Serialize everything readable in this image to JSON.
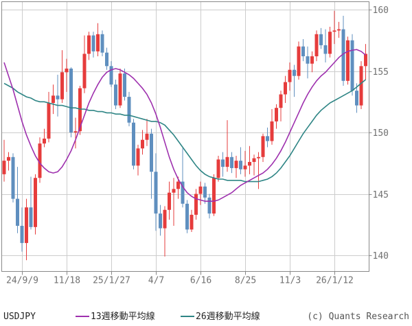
{
  "footer": {
    "symbol_label": "USDJPY",
    "copyright": "(c) Quants Research"
  },
  "chart_data": {
    "type": "candlestick",
    "symbol": "USDJPY",
    "title": "USDJPY weekly candlestick chart with 13-week and 26-week moving averages",
    "timeframe": "weekly",
    "y_axis": {
      "ticks": [
        140,
        145,
        150,
        155,
        160
      ],
      "side": "right",
      "min": 138.7,
      "max": 160.7
    },
    "x_axis": {
      "tick_labels": [
        "24/9/9",
        "11/18",
        "25/1/27",
        "4/7",
        "6/16",
        "8/25",
        "11/3",
        "26/1/12"
      ],
      "tick_weeks": [
        4,
        14,
        24,
        34,
        44,
        54,
        64,
        74
      ]
    },
    "grid": true,
    "legend_position": "bottom",
    "legend": [
      {
        "label": "13週移動平均線",
        "color": "#9e30ae"
      },
      {
        "label": "26週移動平均線",
        "color": "#2e8585"
      }
    ],
    "colors": {
      "up": "#e63c3c",
      "down": "#5f8fbf",
      "ma13": "#9e30ae",
      "ma26": "#2e8585",
      "grid": "#cccccc",
      "axis": "#888888",
      "label": "#707070"
    },
    "candles_format": "open,high,low,close (one per week)",
    "candles": [
      [
        146.6,
        149.4,
        146.0,
        147.7
      ],
      [
        147.7,
        148.4,
        146.9,
        148.0
      ],
      [
        148.0,
        148.3,
        144.3,
        144.6
      ],
      [
        144.6,
        147.2,
        141.8,
        142.4
      ],
      [
        142.4,
        143.9,
        140.3,
        141.0
      ],
      [
        141.0,
        144.6,
        139.6,
        143.9
      ],
      [
        143.9,
        146.4,
        142.1,
        142.3
      ],
      [
        142.3,
        146.6,
        141.7,
        146.3
      ],
      [
        146.3,
        149.6,
        145.9,
        149.1
      ],
      [
        149.1,
        150.3,
        148.8,
        149.5
      ],
      [
        149.5,
        153.3,
        149.2,
        152.4
      ],
      [
        152.4,
        153.9,
        151.5,
        153.0
      ],
      [
        153.0,
        154.7,
        151.3,
        152.7
      ],
      [
        152.7,
        156.7,
        152.4,
        154.9
      ],
      [
        154.9,
        156.0,
        153.3,
        155.2
      ],
      [
        155.2,
        155.3,
        149.6,
        150.0
      ],
      [
        150.0,
        151.2,
        148.7,
        150.1
      ],
      [
        150.1,
        153.8,
        149.8,
        153.6
      ],
      [
        153.6,
        157.9,
        153.2,
        156.4
      ],
      [
        156.4,
        158.2,
        155.9,
        157.9
      ],
      [
        157.9,
        158.2,
        156.1,
        156.6
      ],
      [
        156.6,
        158.9,
        156.2,
        158.0
      ],
      [
        158.0,
        158.3,
        156.2,
        156.5
      ],
      [
        156.5,
        156.9,
        155.1,
        155.4
      ],
      [
        155.4,
        155.8,
        153.7,
        153.9
      ],
      [
        153.9,
        154.3,
        151.9,
        152.2
      ],
      [
        152.2,
        155.2,
        152.0,
        154.8
      ],
      [
        154.8,
        155.2,
        152.6,
        152.9
      ],
      [
        152.9,
        153.3,
        150.5,
        150.8
      ],
      [
        150.8,
        151.1,
        147.0,
        147.3
      ],
      [
        147.3,
        149.0,
        146.5,
        148.7
      ],
      [
        148.7,
        150.2,
        148.2,
        149.4
      ],
      [
        149.4,
        151.1,
        148.9,
        149.9
      ],
      [
        149.9,
        150.3,
        144.6,
        146.8
      ],
      [
        146.8,
        148.3,
        142.0,
        143.4
      ],
      [
        143.4,
        144.1,
        141.6,
        142.2
      ],
      [
        142.2,
        144.0,
        139.9,
        143.7
      ],
      [
        143.7,
        146.0,
        142.9,
        145.1
      ],
      [
        145.1,
        146.3,
        142.4,
        145.4
      ],
      [
        145.4,
        146.4,
        144.6,
        146.0
      ],
      [
        146.0,
        148.7,
        143.9,
        144.2
      ],
      [
        144.2,
        144.5,
        141.8,
        142.1
      ],
      [
        142.1,
        143.7,
        141.9,
        143.3
      ],
      [
        143.3,
        145.4,
        142.9,
        145.0
      ],
      [
        145.0,
        146.0,
        144.1,
        145.6
      ],
      [
        145.6,
        145.9,
        144.2,
        144.7
      ],
      [
        144.7,
        145.0,
        143.0,
        143.4
      ],
      [
        143.4,
        146.6,
        143.2,
        146.3
      ],
      [
        146.3,
        148.1,
        146.0,
        147.8
      ],
      [
        147.8,
        148.4,
        146.4,
        147.2
      ],
      [
        147.2,
        151.0,
        146.8,
        148.0
      ],
      [
        148.0,
        148.4,
        146.7,
        147.1
      ],
      [
        147.1,
        148.1,
        146.3,
        147.7
      ],
      [
        147.7,
        148.8,
        146.6,
        147.0
      ],
      [
        147.0,
        148.5,
        146.4,
        147.3
      ],
      [
        147.3,
        148.9,
        146.6,
        147.6
      ],
      [
        147.6,
        148.2,
        146.5,
        147.9
      ],
      [
        147.9,
        148.4,
        145.4,
        148.0
      ],
      [
        148.0,
        149.9,
        147.6,
        149.7
      ],
      [
        149.7,
        150.4,
        148.8,
        149.3
      ],
      [
        149.3,
        151.9,
        149.0,
        150.9
      ],
      [
        150.9,
        152.3,
        150.3,
        152.0
      ],
      [
        152.0,
        153.4,
        150.9,
        153.1
      ],
      [
        153.1,
        154.6,
        152.4,
        154.1
      ],
      [
        154.1,
        155.7,
        153.4,
        155.1
      ],
      [
        155.1,
        155.5,
        152.9,
        154.6
      ],
      [
        154.6,
        157.4,
        154.3,
        157.0
      ],
      [
        157.0,
        157.6,
        155.8,
        156.2
      ],
      [
        156.2,
        157.0,
        154.4,
        155.6
      ],
      [
        155.6,
        156.6,
        154.9,
        156.2
      ],
      [
        156.2,
        158.3,
        155.8,
        158.0
      ],
      [
        158.0,
        158.5,
        156.8,
        157.1
      ],
      [
        157.1,
        158.4,
        155.7,
        156.4
      ],
      [
        156.4,
        158.6,
        156.1,
        158.2
      ],
      [
        158.2,
        159.9,
        157.2,
        158.3
      ],
      [
        158.3,
        159.0,
        157.7,
        158.4
      ],
      [
        158.4,
        159.5,
        153.8,
        154.2
      ],
      [
        154.2,
        157.8,
        153.9,
        157.5
      ],
      [
        157.5,
        158.0,
        153.0,
        153.4
      ],
      [
        153.4,
        154.0,
        151.6,
        152.2
      ],
      [
        152.2,
        155.8,
        151.9,
        155.4
      ],
      [
        155.4,
        157.2,
        154.3,
        156.4
      ]
    ],
    "ma13": [
      155.7,
      154.6,
      153.5,
      152.2,
      150.9,
      149.8,
      148.9,
      148.1,
      147.5,
      147.1,
      146.8,
      146.7,
      146.8,
      147.2,
      147.8,
      148.5,
      149.4,
      150.4,
      151.4,
      152.4,
      153.2,
      153.9,
      154.5,
      154.9,
      155.1,
      155.2,
      155.1,
      154.9,
      154.7,
      154.4,
      154.0,
      153.6,
      153.1,
      152.4,
      151.5,
      150.4,
      149.2,
      148.0,
      147.0,
      146.2,
      145.6,
      145.1,
      144.8,
      144.6,
      144.5,
      144.4,
      144.4,
      144.4,
      144.5,
      144.7,
      144.9,
      145.1,
      145.4,
      145.7,
      145.9,
      146.1,
      146.3,
      146.5,
      146.7,
      147.0,
      147.4,
      147.9,
      148.5,
      149.2,
      150.0,
      150.8,
      151.6,
      152.4,
      153.1,
      153.7,
      154.2,
      154.6,
      154.9,
      155.3,
      155.7,
      156.1,
      156.4,
      156.6,
      156.7,
      156.75,
      156.6,
      156.3
    ],
    "ma26": [
      154.0,
      153.8,
      153.6,
      153.3,
      153.1,
      152.9,
      152.8,
      152.6,
      152.5,
      152.5,
      152.4,
      152.3,
      152.2,
      152.2,
      152.1,
      152.0,
      152.0,
      151.9,
      151.9,
      151.8,
      151.8,
      151.7,
      151.7,
      151.6,
      151.6,
      151.5,
      151.5,
      151.4,
      151.4,
      151.3,
      151.2,
      151.1,
      151.0,
      150.9,
      150.9,
      150.8,
      150.6,
      150.2,
      149.8,
      149.3,
      148.8,
      148.3,
      147.8,
      147.3,
      146.9,
      146.6,
      146.4,
      146.3,
      146.2,
      146.2,
      146.1,
      146.1,
      146.1,
      146.1,
      146.0,
      146.0,
      146.0,
      146.0,
      146.1,
      146.2,
      146.4,
      146.7,
      147.1,
      147.6,
      148.1,
      148.7,
      149.3,
      149.9,
      150.4,
      150.9,
      151.4,
      151.8,
      152.1,
      152.4,
      152.6,
      152.8,
      153.0,
      153.2,
      153.4,
      153.7,
      154.0,
      154.3
    ]
  }
}
